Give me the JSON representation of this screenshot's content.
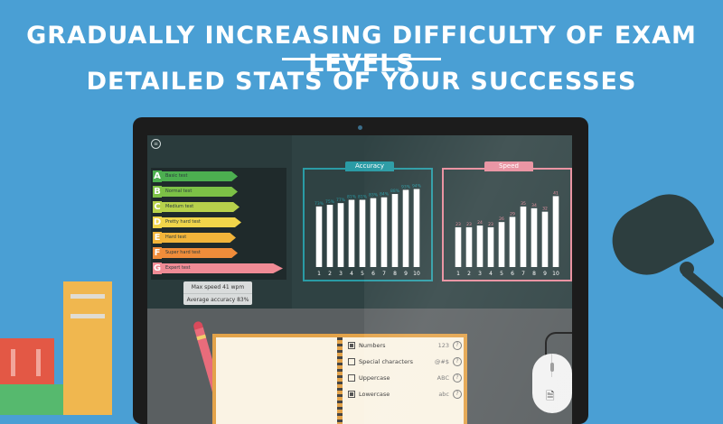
{
  "headline": {
    "line1": "GRADUALLY INCREASING DIFFICULTY OF EXAM LEVELS",
    "line2": "DETAILED STATS OF YOUR SUCCESSES"
  },
  "levels": [
    {
      "letter": "A",
      "label": "Basic test",
      "color": "#4caf50"
    },
    {
      "letter": "B",
      "label": "Normal test",
      "color": "#7cc146"
    },
    {
      "letter": "C",
      "label": "Medium test",
      "color": "#b8d14b"
    },
    {
      "letter": "D",
      "label": "Pretty hard test",
      "color": "#f1d54a"
    },
    {
      "letter": "E",
      "label": "Hard test",
      "color": "#f2b43a"
    },
    {
      "letter": "F",
      "label": "Super hard test",
      "color": "#f08c3a"
    },
    {
      "letter": "G",
      "label": "Expert test",
      "color": "#f08b95"
    }
  ],
  "stats": {
    "max_speed": "Max speed 41 wpm",
    "avg_accuracy": "Average accuracy 83%"
  },
  "accuracy_chart": {
    "title": "Accuracy",
    "border_color": "#2a9ba5",
    "categories": [
      "1",
      "2",
      "3",
      "4",
      "5",
      "6",
      "7",
      "8",
      "9",
      "10"
    ],
    "values": [
      73,
      75,
      77,
      81,
      81,
      83,
      84,
      88,
      93,
      94
    ],
    "labels": [
      "73%",
      "75%",
      "77%",
      "81%",
      "81%",
      "83%",
      "84%",
      "88%",
      "93%",
      "94%"
    ],
    "ylim": [
      0,
      100
    ]
  },
  "speed_chart": {
    "title": "Speed",
    "border_color": "#e88b9b",
    "categories": [
      "1",
      "2",
      "3",
      "4",
      "5",
      "6",
      "7",
      "8",
      "9",
      "10"
    ],
    "values": [
      23,
      23,
      24,
      23,
      26,
      29,
      35,
      34,
      32,
      41
    ],
    "labels": [
      "23",
      "23",
      "24",
      "23",
      "26",
      "29",
      "35",
      "34",
      "32",
      "41"
    ],
    "ylim": [
      0,
      48
    ]
  },
  "options": [
    {
      "label": "Numbers",
      "sample": "123",
      "checked": true
    },
    {
      "label": "Special characters",
      "sample": "@#$",
      "checked": false
    },
    {
      "label": "Uppercase",
      "sample": "ABC",
      "checked": false
    },
    {
      "label": "Lowercase",
      "sample": "abc",
      "checked": true
    }
  ],
  "help_glyph": "?",
  "menu_glyph": "≡",
  "doc_icon_glyph": "🗎"
}
